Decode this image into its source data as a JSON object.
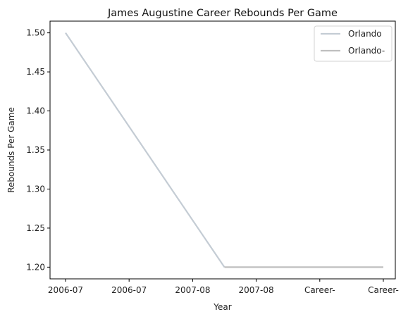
{
  "chart_data": {
    "type": "line",
    "title": "James Augustine Career Rebounds Per Game",
    "xlabel": "Year",
    "ylabel": "Rebounds Per Game",
    "categories": [
      "2006-07",
      "2006-07",
      "2007-08",
      "2007-08",
      "Career-",
      "Career-"
    ],
    "ylim": [
      1.185,
      1.515
    ],
    "yticks": [
      "1.20",
      "1.25",
      "1.30",
      "1.35",
      "1.40",
      "1.45",
      "1.50"
    ],
    "grid": false,
    "legend_position": "top-right",
    "series": [
      {
        "name": "Orlando",
        "color": "#c4ccd4",
        "points": [
          [
            0,
            1.5
          ],
          [
            2.5,
            1.2
          ]
        ]
      },
      {
        "name": "Orlando-",
        "color": "#bfbfbf",
        "points": [
          [
            2.5,
            1.2
          ],
          [
            5,
            1.2
          ]
        ]
      }
    ]
  }
}
